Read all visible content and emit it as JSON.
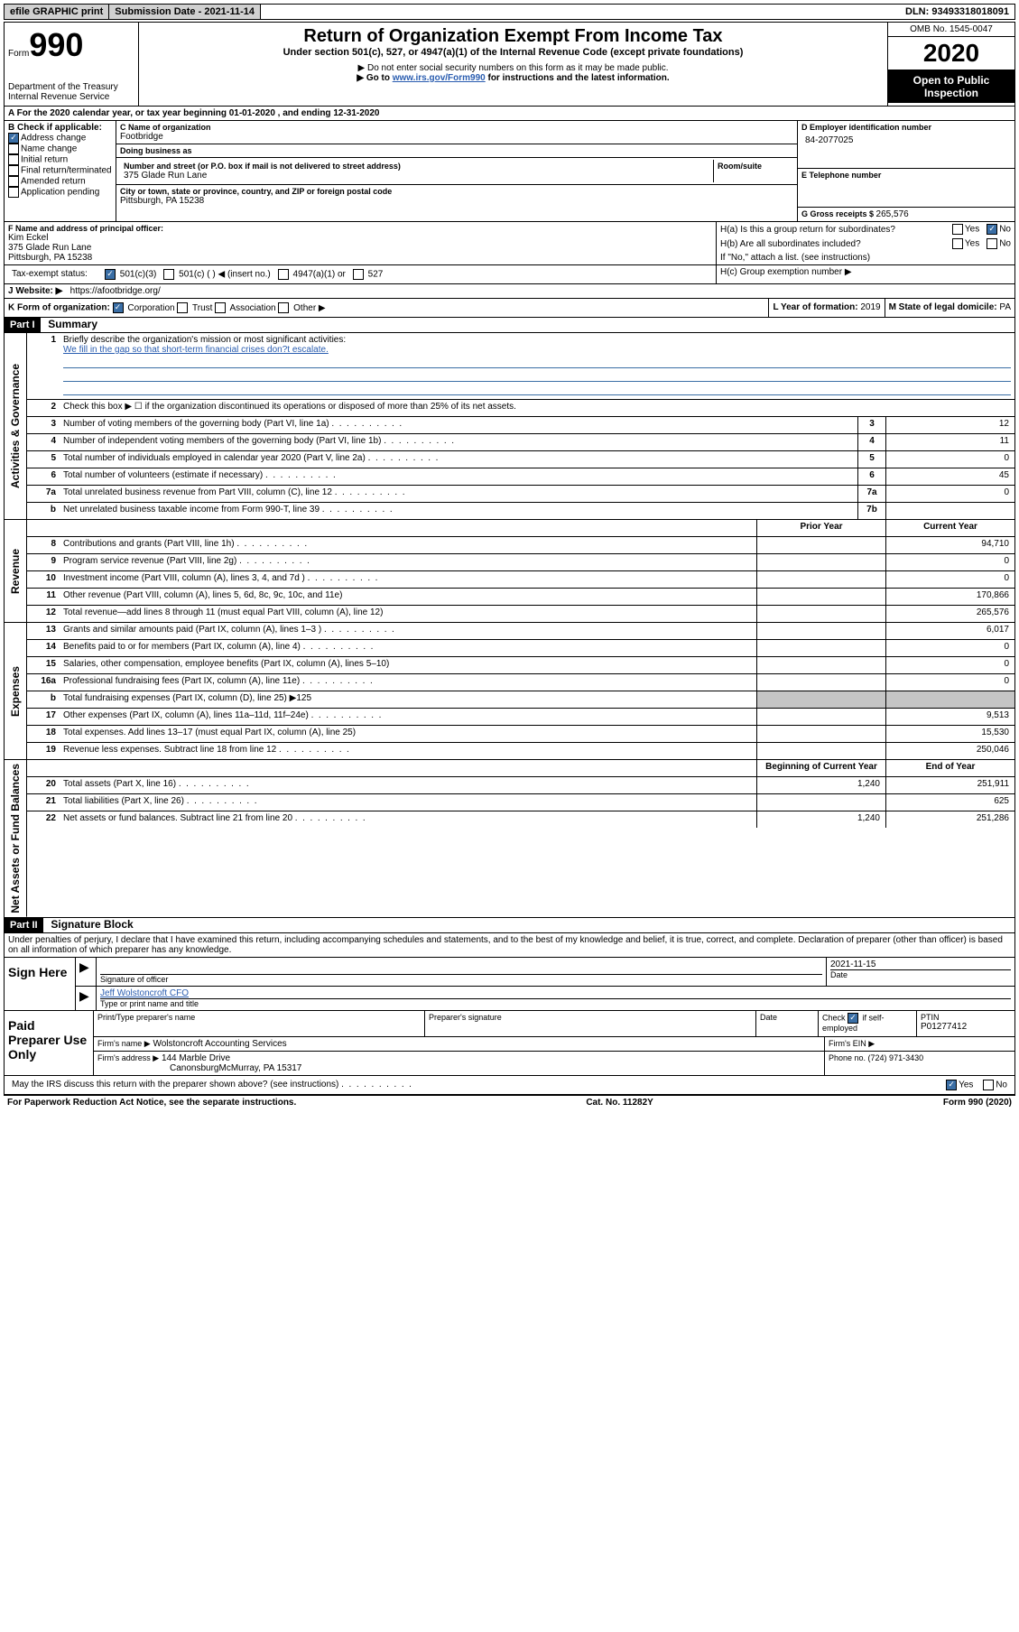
{
  "topbar": {
    "efile": "efile GRAPHIC print",
    "submission_label": "Submission Date - ",
    "submission_date": "2021-11-14",
    "dln_label": "DLN: ",
    "dln": "93493318018091"
  },
  "header": {
    "form_label": "Form",
    "form_number": "990",
    "dept": "Department of the Treasury\nInternal Revenue Service",
    "title": "Return of Organization Exempt From Income Tax",
    "subtitle": "Under section 501(c), 527, or 4947(a)(1) of the Internal Revenue Code (except private foundations)",
    "instr1": "▶ Do not enter social security numbers on this form as it may be made public.",
    "instr2_pre": "▶ Go to ",
    "instr2_link": "www.irs.gov/Form990",
    "instr2_post": " for instructions and the latest information.",
    "omb": "OMB No. 1545-0047",
    "year": "2020",
    "inspect": "Open to Public Inspection"
  },
  "section_a": "A For the 2020 calendar year, or tax year beginning 01-01-2020   , and ending 12-31-2020",
  "box_b": {
    "label": "B Check if applicable:",
    "items": [
      "Address change",
      "Name change",
      "Initial return",
      "Final return/terminated",
      "Amended return",
      "Application pending"
    ],
    "checked_idx": 0
  },
  "box_c": {
    "name_label": "C Name of organization",
    "name": "Footbridge",
    "dba_label": "Doing business as",
    "addr_label": "Number and street (or P.O. box if mail is not delivered to street address)",
    "room_label": "Room/suite",
    "addr": "375 Glade Run Lane",
    "city_label": "City or town, state or province, country, and ZIP or foreign postal code",
    "city": "Pittsburgh, PA  15238"
  },
  "box_d": {
    "label": "D Employer identification number",
    "value": "84-2077025"
  },
  "box_e": {
    "label": "E Telephone number"
  },
  "box_g": {
    "label": "G Gross receipts $ ",
    "value": "265,576"
  },
  "box_f": {
    "label": "F  Name and address of principal officer:",
    "name": "Kim Eckel",
    "addr": "375 Glade Run Lane",
    "city": "Pittsburgh, PA  15238"
  },
  "box_h": {
    "a_label": "H(a)  Is this a group return for subordinates?",
    "b_label": "H(b)  Are all subordinates included?",
    "b_note": "If \"No,\" attach a list. (see instructions)",
    "c_label": "H(c)  Group exemption number ▶",
    "yes": "Yes",
    "no": "No"
  },
  "tax_status": {
    "label": "Tax-exempt status:",
    "opts": [
      "501(c)(3)",
      "501(c) (  ) ◀ (insert no.)",
      "4947(a)(1) or",
      "527"
    ],
    "checked_idx": 0
  },
  "box_j": {
    "label": "J   Website: ▶",
    "value": "https://afootbridge.org/"
  },
  "box_k": {
    "label": "K Form of organization:",
    "opts": [
      "Corporation",
      "Trust",
      "Association",
      "Other ▶"
    ],
    "checked_idx": 0
  },
  "box_l": {
    "label": "L Year of formation: ",
    "value": "2019"
  },
  "box_m": {
    "label": "M State of legal domicile: ",
    "value": "PA"
  },
  "part1": {
    "header": "Part I",
    "title": "Summary",
    "sections": [
      {
        "vlabel": "Activities & Governance",
        "lines": [
          {
            "n": "1",
            "text": "Briefly describe the organization's mission or most significant activities:",
            "mission": "We fill in the gap so that short-term financial crises don?t escalate.",
            "underlines": 3
          },
          {
            "n": "2",
            "text": "Check this box ▶ ☐  if the organization discontinued its operations or disposed of more than 25% of its net assets."
          },
          {
            "n": "3",
            "text": "Number of voting members of the governing body (Part VI, line 1a)",
            "col": "3",
            "cur": "12",
            "dots": true
          },
          {
            "n": "4",
            "text": "Number of independent voting members of the governing body (Part VI, line 1b)",
            "col": "4",
            "cur": "11",
            "dots": true
          },
          {
            "n": "5",
            "text": "Total number of individuals employed in calendar year 2020 (Part V, line 2a)",
            "col": "5",
            "cur": "0",
            "dots": true
          },
          {
            "n": "6",
            "text": "Total number of volunteers (estimate if necessary)",
            "col": "6",
            "cur": "45",
            "dots": true
          },
          {
            "n": "7a",
            "text": "Total unrelated business revenue from Part VIII, column (C), line 12",
            "col": "7a",
            "cur": "0",
            "dots": true
          },
          {
            "n": "b",
            "text": "Net unrelated business taxable income from Form 990-T, line 39",
            "col": "7b",
            "cur": "",
            "dots": true
          }
        ]
      },
      {
        "vlabel": "Revenue",
        "header_row": {
          "prior": "Prior Year",
          "current": "Current Year"
        },
        "lines": [
          {
            "n": "8",
            "text": "Contributions and grants (Part VIII, line 1h)",
            "prior": "",
            "cur": "94,710",
            "dots": true
          },
          {
            "n": "9",
            "text": "Program service revenue (Part VIII, line 2g)",
            "prior": "",
            "cur": "0",
            "dots": true
          },
          {
            "n": "10",
            "text": "Investment income (Part VIII, column (A), lines 3, 4, and 7d )",
            "prior": "",
            "cur": "0",
            "dots": true
          },
          {
            "n": "11",
            "text": "Other revenue (Part VIII, column (A), lines 5, 6d, 8c, 9c, 10c, and 11e)",
            "prior": "",
            "cur": "170,866"
          },
          {
            "n": "12",
            "text": "Total revenue—add lines 8 through 11 (must equal Part VIII, column (A), line 12)",
            "prior": "",
            "cur": "265,576"
          }
        ]
      },
      {
        "vlabel": "Expenses",
        "lines": [
          {
            "n": "13",
            "text": "Grants and similar amounts paid (Part IX, column (A), lines 1–3 )",
            "prior": "",
            "cur": "6,017",
            "dots": true
          },
          {
            "n": "14",
            "text": "Benefits paid to or for members (Part IX, column (A), line 4)",
            "prior": "",
            "cur": "0",
            "dots": true
          },
          {
            "n": "15",
            "text": "Salaries, other compensation, employee benefits (Part IX, column (A), lines 5–10)",
            "prior": "",
            "cur": "0"
          },
          {
            "n": "16a",
            "text": "Professional fundraising fees (Part IX, column (A), line 11e)",
            "prior": "",
            "cur": "0",
            "dots": true
          },
          {
            "n": "b",
            "text": "Total fundraising expenses (Part IX, column (D), line 25) ▶125",
            "prior_grey": true,
            "cur_grey": true
          },
          {
            "n": "17",
            "text": "Other expenses (Part IX, column (A), lines 11a–11d, 11f–24e)",
            "prior": "",
            "cur": "9,513",
            "dots": true
          },
          {
            "n": "18",
            "text": "Total expenses. Add lines 13–17 (must equal Part IX, column (A), line 25)",
            "prior": "",
            "cur": "15,530"
          },
          {
            "n": "19",
            "text": "Revenue less expenses. Subtract line 18 from line 12",
            "prior": "",
            "cur": "250,046",
            "dots": true
          }
        ]
      },
      {
        "vlabel": "Net Assets or Fund Balances",
        "header_row": {
          "prior": "Beginning of Current Year",
          "current": "End of Year"
        },
        "lines": [
          {
            "n": "20",
            "text": "Total assets (Part X, line 16)",
            "prior": "1,240",
            "cur": "251,911",
            "dots": true
          },
          {
            "n": "21",
            "text": "Total liabilities (Part X, line 26)",
            "prior": "",
            "cur": "625",
            "dots": true
          },
          {
            "n": "22",
            "text": "Net assets or fund balances. Subtract line 21 from line 20",
            "prior": "1,240",
            "cur": "251,286",
            "dots": true
          }
        ]
      }
    ]
  },
  "part2": {
    "header": "Part II",
    "title": "Signature Block",
    "declaration": "Under penalties of perjury, I declare that I have examined this return, including accompanying schedules and statements, and to the best of my knowledge and belief, it is true, correct, and complete. Declaration of preparer (other than officer) is based on all information of which preparer has any knowledge."
  },
  "sign_here": {
    "label": "Sign Here",
    "sig_label": "Signature of officer",
    "date_label": "Date",
    "date": "2021-11-15",
    "name": "Jeff Wolstoncroft CFO",
    "name_label": "Type or print name and title"
  },
  "preparer": {
    "label": "Paid Preparer Use Only",
    "name_label": "Print/Type preparer's name",
    "sig_label": "Preparer's signature",
    "date_label": "Date",
    "check_label": "Check",
    "self_emp": "if self-employed",
    "ptin_label": "PTIN",
    "ptin": "P01277412",
    "firm_name_label": "Firm's name    ▶",
    "firm_name": "Wolstoncroft Accounting Services",
    "firm_ein_label": "Firm's EIN ▶",
    "firm_addr_label": "Firm's address ▶",
    "firm_addr": "144 Marble Drive",
    "firm_city": "CanonsburgMcMurray, PA  15317",
    "phone_label": "Phone no. ",
    "phone": "(724) 971-3430"
  },
  "discuss": {
    "text": "May the IRS discuss this return with the preparer shown above? (see instructions)",
    "yes": "Yes",
    "no": "No"
  },
  "footer": {
    "left": "For Paperwork Reduction Act Notice, see the separate instructions.",
    "center": "Cat. No. 11282Y",
    "right": "Form 990 (2020)"
  }
}
